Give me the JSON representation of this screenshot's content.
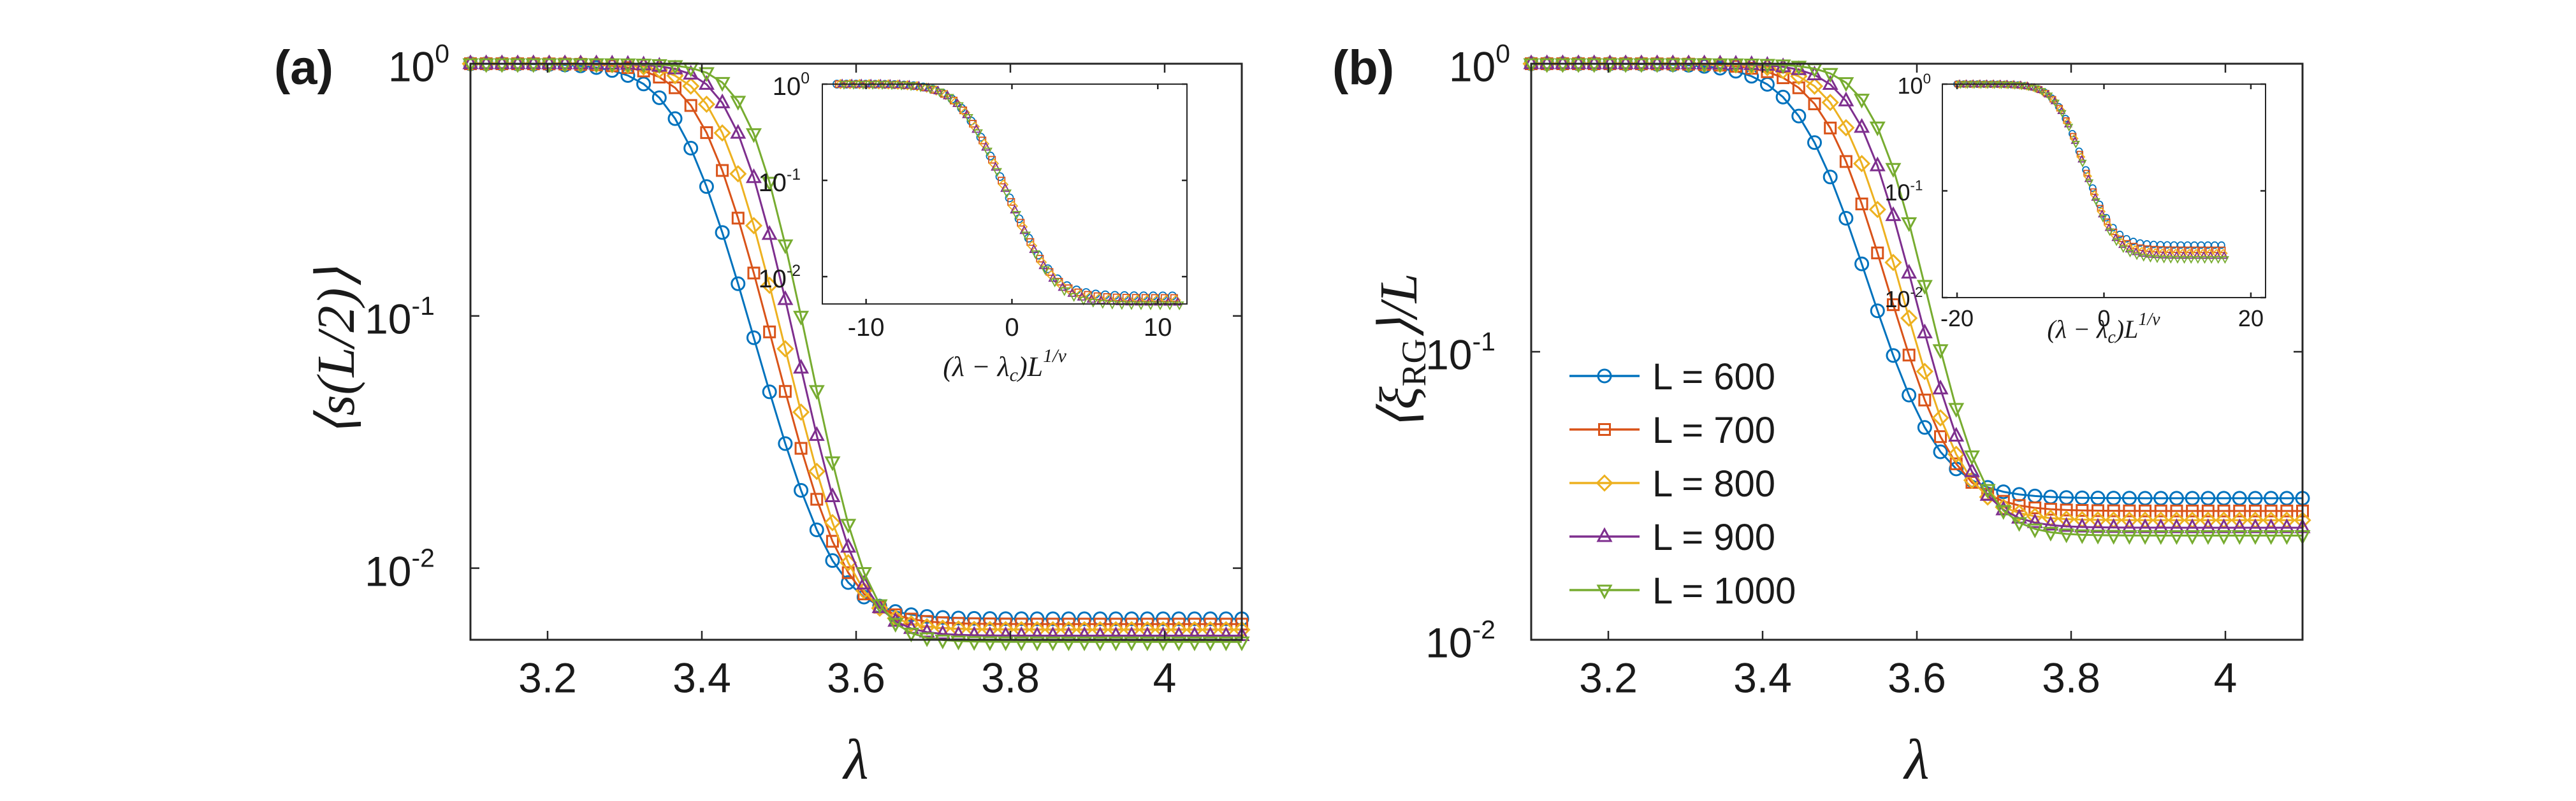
{
  "figure": {
    "description_free": true
  },
  "colors": {
    "series": [
      "#0072BD",
      "#D95319",
      "#EDB120",
      "#7E2F8E",
      "#77AC30"
    ],
    "axes": "#262626",
    "background": "#ffffff"
  },
  "legend": {
    "entries": [
      "L = 600",
      "L = 700",
      "L = 800",
      "L = 900",
      "L = 1000"
    ],
    "markers": [
      "circle",
      "square",
      "diamond",
      "triangle-up",
      "triangle-down"
    ]
  },
  "chart_data": [
    {
      "id": "panel-a",
      "type": "line",
      "panel_label": "(a)",
      "xlabel": "λ",
      "ylabel": "⟨s(L/2)⟩",
      "yscale": "log",
      "xlim": [
        3.1,
        4.1
      ],
      "ylim": [
        0.0052,
        1.0
      ],
      "xticks": [
        3.2,
        3.4,
        3.6,
        3.8,
        4.0
      ],
      "xtick_labels": [
        "3.2",
        "3.4",
        "3.6",
        "3.8",
        "4"
      ],
      "yticks": [
        1.0,
        0.1,
        0.01
      ],
      "ytick_labels": [
        [
          "10",
          "0"
        ],
        [
          "10",
          "-1"
        ],
        [
          "10",
          "-2"
        ]
      ],
      "series_model": {
        "form": "y = lo + (1 - lo) / (1 + exp((x - xc) / w))",
        "x_start": 3.1,
        "x_end": 4.1,
        "n_points": 50,
        "series": [
          {
            "name": "L = 600",
            "xc": 3.38,
            "w": 0.035,
            "lo": 0.0063
          },
          {
            "name": "L = 700",
            "xc": 3.41,
            "w": 0.032,
            "lo": 0.006
          },
          {
            "name": "L = 800",
            "xc": 3.43,
            "w": 0.03,
            "lo": 0.0057
          },
          {
            "name": "L = 900",
            "xc": 3.45,
            "w": 0.028,
            "lo": 0.0054
          },
          {
            "name": "L = 1000",
            "xc": 3.47,
            "w": 0.026,
            "lo": 0.0051
          }
        ]
      },
      "inset": {
        "xlabel": "(λ − λc)L^{1/ν}",
        "xlim": [
          -13,
          12
        ],
        "ylim": [
          0.0052,
          1.0
        ],
        "xticks": [
          -10,
          0,
          10
        ],
        "xtick_labels": [
          "-10",
          "0",
          "10"
        ],
        "yticks": [
          1.0,
          0.1,
          0.01
        ],
        "ytick_labels": [
          [
            "10",
            "0"
          ],
          [
            "10",
            "-1"
          ],
          [
            "10",
            "-2"
          ]
        ],
        "x_start": -12,
        "x_end": 11,
        "n_points": 36,
        "xc": -3.2,
        "w": 1.1,
        "lo": [
          0.0063,
          0.006,
          0.0057,
          0.0054,
          0.0051
        ]
      }
    },
    {
      "id": "panel-b",
      "type": "line",
      "panel_label": "(b)",
      "xlabel": "λ",
      "ylabel": "⟨ξRG⟩/L",
      "yscale": "log",
      "xlim": [
        3.1,
        4.1
      ],
      "ylim": [
        0.01,
        1.0
      ],
      "xticks": [
        3.2,
        3.4,
        3.6,
        3.8,
        4.0
      ],
      "xtick_labels": [
        "3.2",
        "3.4",
        "3.6",
        "3.8",
        "4"
      ],
      "yticks": [
        1.0,
        0.1,
        0.01
      ],
      "ytick_labels": [
        [
          "10",
          "0"
        ],
        [
          "10",
          "-1"
        ],
        [
          "10",
          "-2"
        ]
      ],
      "series_model": {
        "form": "y = lo + (1 - lo) / (1 + exp((x - xc) / w))",
        "x_start": 3.1,
        "x_end": 4.1,
        "n_points": 50,
        "series": [
          {
            "name": "L = 600",
            "xc": 3.47,
            "w": 0.038,
            "lo": 0.031
          },
          {
            "name": "L = 700",
            "xc": 3.5,
            "w": 0.035,
            "lo": 0.028
          },
          {
            "name": "L = 800",
            "xc": 3.52,
            "w": 0.033,
            "lo": 0.026
          },
          {
            "name": "L = 900",
            "xc": 3.54,
            "w": 0.031,
            "lo": 0.0245
          },
          {
            "name": "L = 1000",
            "xc": 3.56,
            "w": 0.029,
            "lo": 0.023
          }
        ]
      },
      "inset": {
        "xlabel": "(λ − λc)L^{1/ν}",
        "xlim": [
          -22,
          22
        ],
        "ylim": [
          0.01,
          1.0
        ],
        "xticks": [
          -20,
          0,
          20
        ],
        "xtick_labels": [
          "-20",
          "0",
          "20"
        ],
        "yticks": [
          1.0,
          0.1,
          0.01
        ],
        "ytick_labels": [
          [
            "10",
            "0"
          ],
          [
            "10",
            "-1"
          ],
          [
            "10",
            "-2"
          ]
        ],
        "x_start": -20,
        "x_end": 16,
        "n_points": 40,
        "xc": -5.5,
        "w": 1.6,
        "lo": [
          0.031,
          0.028,
          0.026,
          0.0245,
          0.023
        ]
      }
    }
  ]
}
